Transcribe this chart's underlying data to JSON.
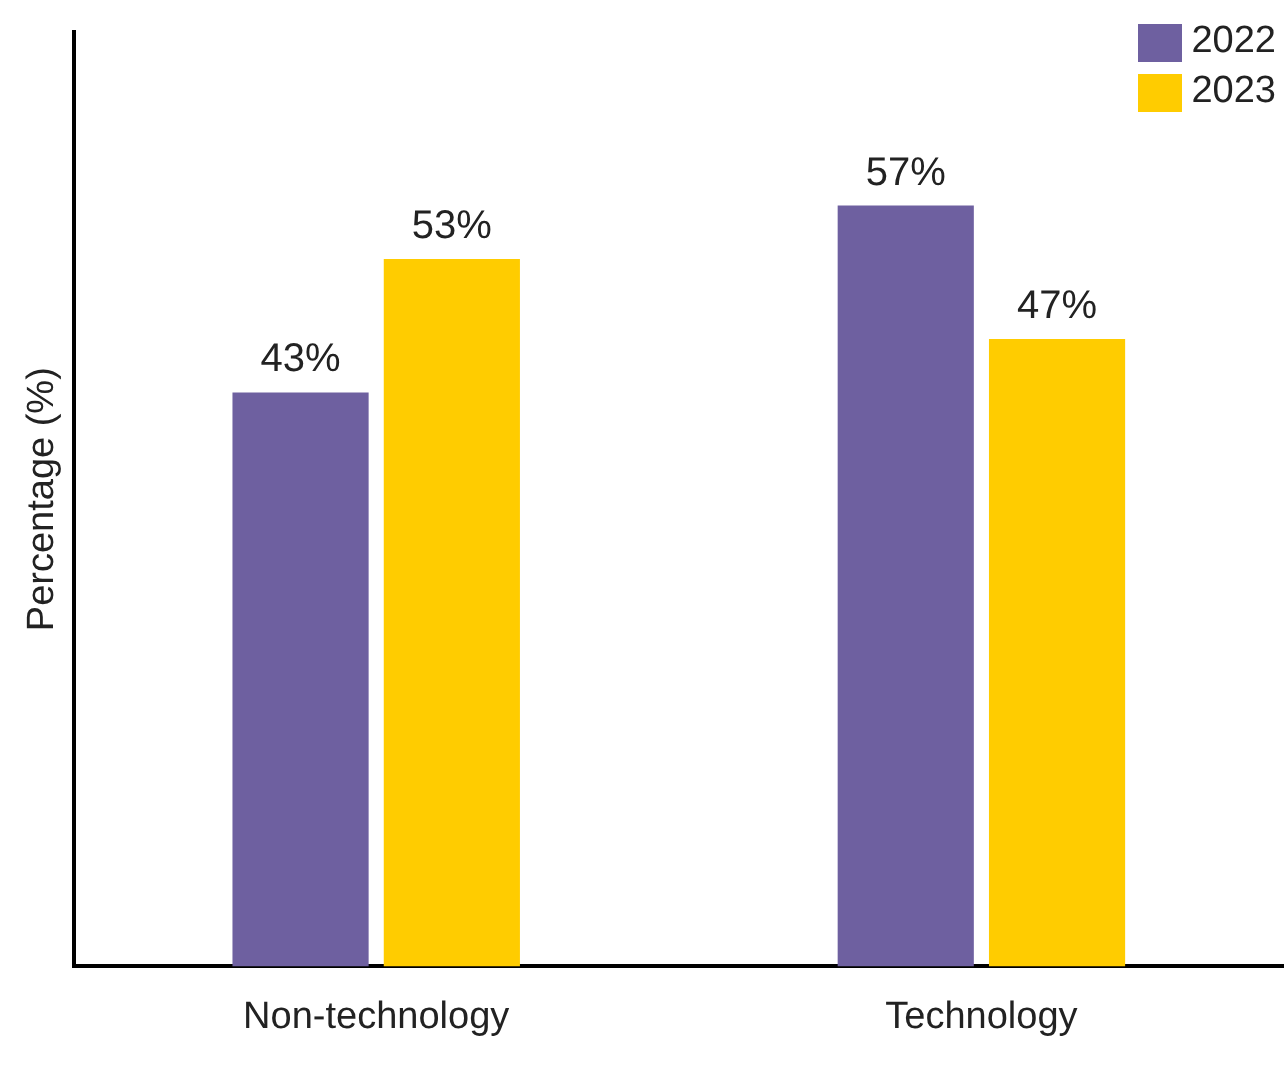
{
  "chart_data": {
    "type": "bar",
    "ylabel": "Percentage (%)",
    "categories": [
      "Non-technology",
      "Technology"
    ],
    "series": [
      {
        "name": "2022",
        "color": "#6e60a0",
        "values": [
          43,
          57
        ],
        "value_labels": [
          "43%",
          "57%"
        ]
      },
      {
        "name": "2023",
        "color": "#ffcc00",
        "values": [
          53,
          47
        ],
        "value_labels": [
          "53%",
          "47%"
        ]
      }
    ],
    "ylim": [
      0,
      70
    ],
    "tick_labels": "x",
    "grid": false,
    "legend": "top right"
  }
}
